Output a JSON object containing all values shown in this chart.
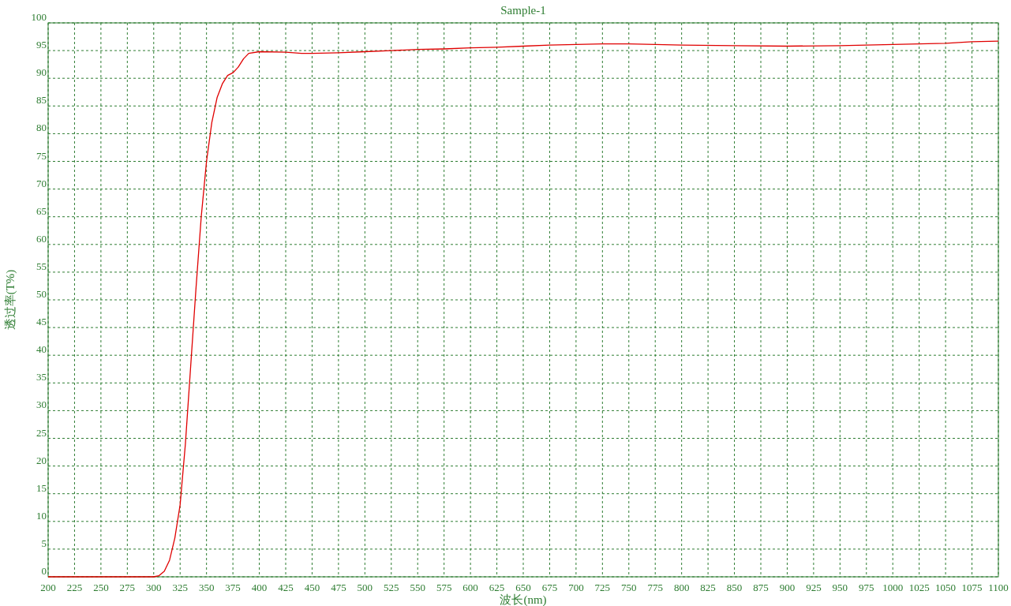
{
  "chart_data": {
    "type": "line",
    "title": "Sample-1",
    "xlabel": "波长(nm)",
    "ylabel": "透过率(T%)",
    "xlim": [
      200,
      1100
    ],
    "xticks": [
      200,
      225,
      250,
      275,
      300,
      325,
      350,
      375,
      400,
      425,
      450,
      475,
      500,
      525,
      550,
      575,
      600,
      625,
      650,
      675,
      700,
      725,
      750,
      775,
      800,
      825,
      850,
      875,
      900,
      925,
      950,
      975,
      1000,
      1025,
      1050,
      1075,
      1100
    ],
    "ylim": [
      0,
      100
    ],
    "yticks": [
      0,
      5,
      10,
      15,
      20,
      25,
      30,
      35,
      40,
      45,
      50,
      55,
      60,
      65,
      70,
      75,
      80,
      85,
      90,
      95,
      100
    ],
    "grid": true,
    "line_style": "solid",
    "marker": "none",
    "x": [
      200,
      250,
      300,
      305,
      310,
      315,
      320,
      325,
      330,
      335,
      340,
      345,
      350,
      355,
      360,
      365,
      370,
      375,
      380,
      385,
      390,
      400,
      425,
      440,
      450,
      475,
      500,
      525,
      550,
      575,
      600,
      625,
      650,
      675,
      700,
      725,
      750,
      775,
      800,
      850,
      900,
      950,
      1000,
      1025,
      1050,
      1075,
      1100
    ],
    "series": [
      {
        "color": "#e00000",
        "values": [
          0,
          0,
          0,
          0.2,
          1,
          3,
          7,
          13,
          24,
          38,
          52,
          65,
          75,
          82,
          86.5,
          89,
          90.5,
          91,
          92,
          93.5,
          94.5,
          94.8,
          94.7,
          94.5,
          94.5,
          94.6,
          94.8,
          95,
          95.2,
          95.3,
          95.5,
          95.6,
          95.8,
          96,
          96.1,
          96.2,
          96.2,
          96.1,
          96,
          95.9,
          95.8,
          95.9,
          96.1,
          96.2,
          96.3,
          96.6,
          96.7
        ]
      }
    ]
  }
}
